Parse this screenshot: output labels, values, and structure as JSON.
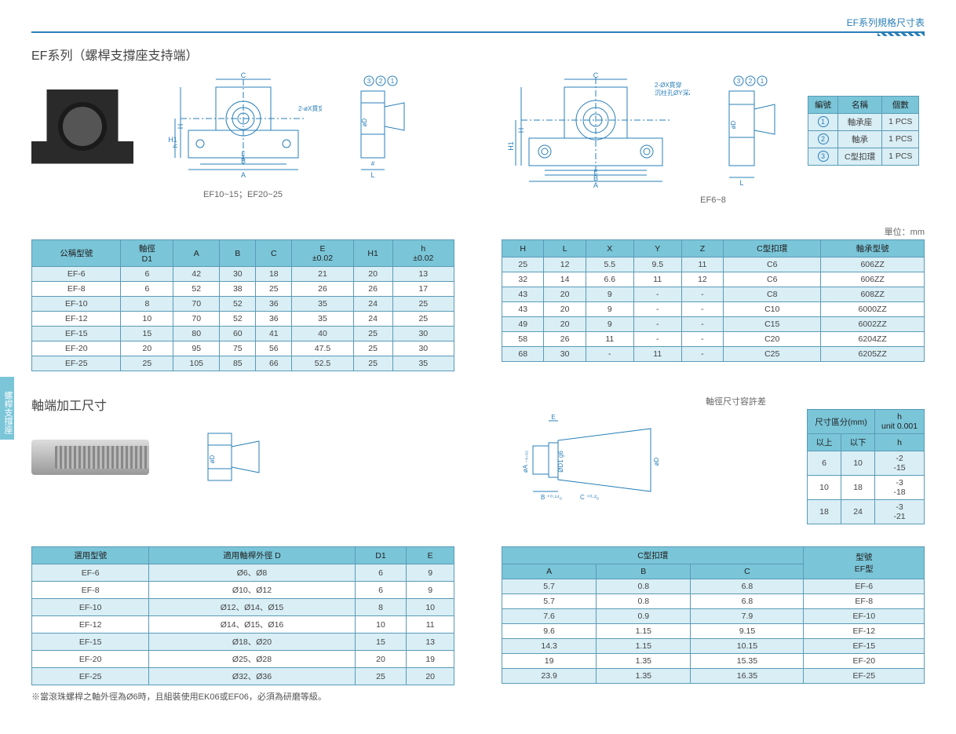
{
  "header_title": "EF系列規格尺寸表",
  "side_tab": "螺桿支撐座",
  "section1": {
    "title": "EF系列（螺桿支撐座支持端）",
    "caption_left": "EF10~15；EF20~25",
    "caption_right": "EF6~8",
    "unit": "單位：mm",
    "annotation_left": "2-øX貫穿",
    "annotation_right": "2-ØX貫穿\n沉柱孔ØY深Z"
  },
  "parts_table": {
    "headers": [
      "編號",
      "名稱",
      "個數"
    ],
    "rows": [
      [
        "1",
        "軸承座",
        "1 PCS"
      ],
      [
        "2",
        "軸承",
        "1 PCS"
      ],
      [
        "3",
        "C型扣環",
        "1 PCS"
      ]
    ]
  },
  "table1a": {
    "headers": [
      "公稱型號",
      "軸徑\nD1",
      "A",
      "B",
      "C",
      "E\n±0.02",
      "H1",
      "h\n±0.02"
    ],
    "rows": [
      [
        "EF-6",
        "6",
        "42",
        "30",
        "18",
        "21",
        "20",
        "13"
      ],
      [
        "EF-8",
        "6",
        "52",
        "38",
        "25",
        "26",
        "26",
        "17"
      ],
      [
        "EF-10",
        "8",
        "70",
        "52",
        "36",
        "35",
        "24",
        "25"
      ],
      [
        "EF-12",
        "10",
        "70",
        "52",
        "36",
        "35",
        "24",
        "25"
      ],
      [
        "EF-15",
        "15",
        "80",
        "60",
        "41",
        "40",
        "25",
        "30"
      ],
      [
        "EF-20",
        "20",
        "95",
        "75",
        "56",
        "47.5",
        "25",
        "30"
      ],
      [
        "EF-25",
        "25",
        "105",
        "85",
        "66",
        "52.5",
        "25",
        "35"
      ]
    ]
  },
  "table1b": {
    "headers": [
      "H",
      "L",
      "X",
      "Y",
      "Z",
      "C型扣環",
      "軸承型號"
    ],
    "rows": [
      [
        "25",
        "12",
        "5.5",
        "9.5",
        "11",
        "C6",
        "606ZZ"
      ],
      [
        "32",
        "14",
        "6.6",
        "11",
        "12",
        "C6",
        "606ZZ"
      ],
      [
        "43",
        "20",
        "9",
        "-",
        "-",
        "C8",
        "608ZZ"
      ],
      [
        "43",
        "20",
        "9",
        "-",
        "-",
        "C10",
        "6000ZZ"
      ],
      [
        "49",
        "20",
        "9",
        "-",
        "-",
        "C15",
        "6002ZZ"
      ],
      [
        "58",
        "26",
        "11",
        "-",
        "-",
        "C20",
        "6204ZZ"
      ],
      [
        "68",
        "30",
        "-",
        "11",
        "-",
        "C25",
        "6205ZZ"
      ]
    ]
  },
  "section2": {
    "title": "軸端加工尺寸",
    "tolerance_title": "軸徑尺寸容許差",
    "footnote": "※當滾珠螺桿之軸外徑為Ø6時，且組裝使用EK06或EF06，必須為研磨等級。"
  },
  "tolerance_table": {
    "headers": [
      "尺寸區分(mm)",
      "h\nunit 0.001"
    ],
    "sub_headers": [
      "以上",
      "以下",
      "h"
    ],
    "rows": [
      [
        "6",
        "10",
        "-2\n-15"
      ],
      [
        "10",
        "18",
        "-3\n-18"
      ],
      [
        "18",
        "24",
        "-3\n-21"
      ]
    ]
  },
  "table2a": {
    "headers": [
      "選用型號",
      "適用軸桿外徑 D",
      "D1",
      "E"
    ],
    "rows": [
      [
        "EF-6",
        "Ø6、Ø8",
        "6",
        "9"
      ],
      [
        "EF-8",
        "Ø10、Ø12",
        "6",
        "9"
      ],
      [
        "EF-10",
        "Ø12、Ø14、Ø15",
        "8",
        "10"
      ],
      [
        "EF-12",
        "Ø14、Ø15、Ø16",
        "10",
        "11"
      ],
      [
        "EF-15",
        "Ø18、Ø20",
        "15",
        "13"
      ],
      [
        "EF-20",
        "Ø25、Ø28",
        "20",
        "19"
      ],
      [
        "EF-25",
        "Ø32、Ø36",
        "25",
        "20"
      ]
    ]
  },
  "table2b": {
    "headers_top": [
      "C型扣環",
      "型號\nEF型"
    ],
    "headers_sub": [
      "A",
      "B",
      "C"
    ],
    "rows": [
      [
        "5.7",
        "0.8",
        "6.8",
        "EF-6"
      ],
      [
        "5.7",
        "0.8",
        "6.8",
        "EF-8"
      ],
      [
        "7.6",
        "0.9",
        "7.9",
        "EF-10"
      ],
      [
        "9.6",
        "1.15",
        "9.15",
        "EF-12"
      ],
      [
        "14.3",
        "1.15",
        "10.15",
        "EF-15"
      ],
      [
        "19",
        "1.35",
        "15.35",
        "EF-20"
      ],
      [
        "23.9",
        "1.35",
        "16.35",
        "EF-25"
      ]
    ]
  },
  "colors": {
    "header_bg": "#7ac5d8",
    "light_row": "#d9eef5",
    "border": "#5a9bb8",
    "accent": "#2a7fb8"
  }
}
